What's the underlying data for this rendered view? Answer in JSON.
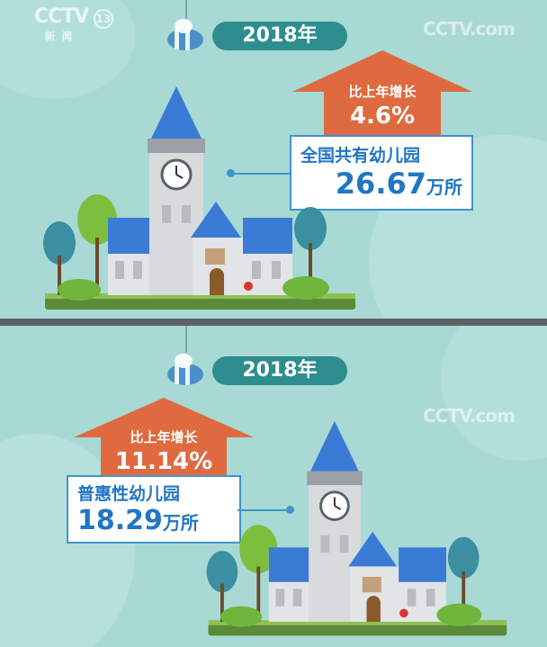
{
  "logo": {
    "text": "CCTV",
    "channel": "13",
    "sub": "新闻"
  },
  "watermark": "CCTV.com",
  "panel1": {
    "year": "2018年",
    "growth_label": "比上年增长",
    "growth_value": "4.6%",
    "desc": "全国共有幼儿园",
    "count": "26.67",
    "unit": "万所"
  },
  "panel2": {
    "year": "2018年",
    "growth_label": "比上年增长",
    "growth_value": "11.14%",
    "desc": "普惠性幼儿园",
    "count": "18.29",
    "unit": "万所"
  },
  "colors": {
    "bg": "#a9d9d5",
    "arrow": "#e06a3f",
    "blue": "#1f76c3",
    "pill": "#2e8d8f"
  }
}
